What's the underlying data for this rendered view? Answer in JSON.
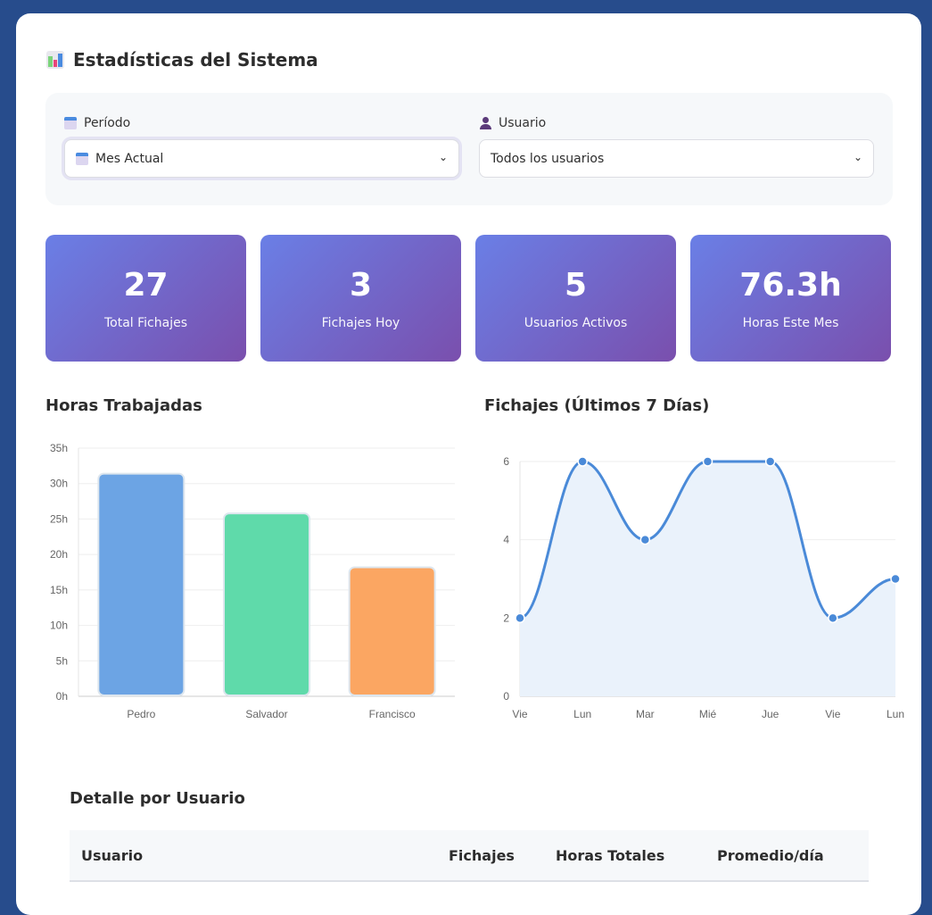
{
  "header": {
    "title": "Estadísticas del Sistema",
    "icon": "bar-chart-icon"
  },
  "filters": {
    "period_label": "Período",
    "period_value": "Mes Actual",
    "user_label": "Usuario",
    "user_value": "Todos los usuarios"
  },
  "stats": [
    {
      "value": "27",
      "label": "Total Fichajes"
    },
    {
      "value": "3",
      "label": "Fichajes Hoy"
    },
    {
      "value": "5",
      "label": "Usuarios Activos"
    },
    {
      "value": "76.3h",
      "label": "Horas Este Mes"
    }
  ],
  "chart_data": [
    {
      "type": "bar",
      "title": "Horas Trabajadas",
      "categories": [
        "Pedro",
        "Salvador",
        "Francisco"
      ],
      "values": [
        31.4,
        25.8,
        18.2
      ],
      "colors": [
        "#6ca4e4",
        "#5fdaaa",
        "#fba662"
      ],
      "ylim": [
        0,
        35
      ],
      "yticks": [
        "0h",
        "5h",
        "10h",
        "15h",
        "20h",
        "25h",
        "30h",
        "35h"
      ],
      "grid": true
    },
    {
      "type": "line",
      "title": "Fichajes (Últimos 7 Días)",
      "categories": [
        "Vie",
        "Lun",
        "Mar",
        "Mié",
        "Jue",
        "Vie",
        "Lun"
      ],
      "values": [
        2,
        6,
        4,
        6,
        6,
        2,
        3
      ],
      "ylim": [
        0,
        6
      ],
      "yticks": [
        "0",
        "2",
        "4",
        "6"
      ],
      "color": "#4a8ad8",
      "fill": "#eaf2fb",
      "grid": true
    }
  ],
  "table": {
    "title": "Detalle por Usuario",
    "columns": [
      "Usuario",
      "Fichajes",
      "Horas Totales",
      "Promedio/día"
    ]
  }
}
